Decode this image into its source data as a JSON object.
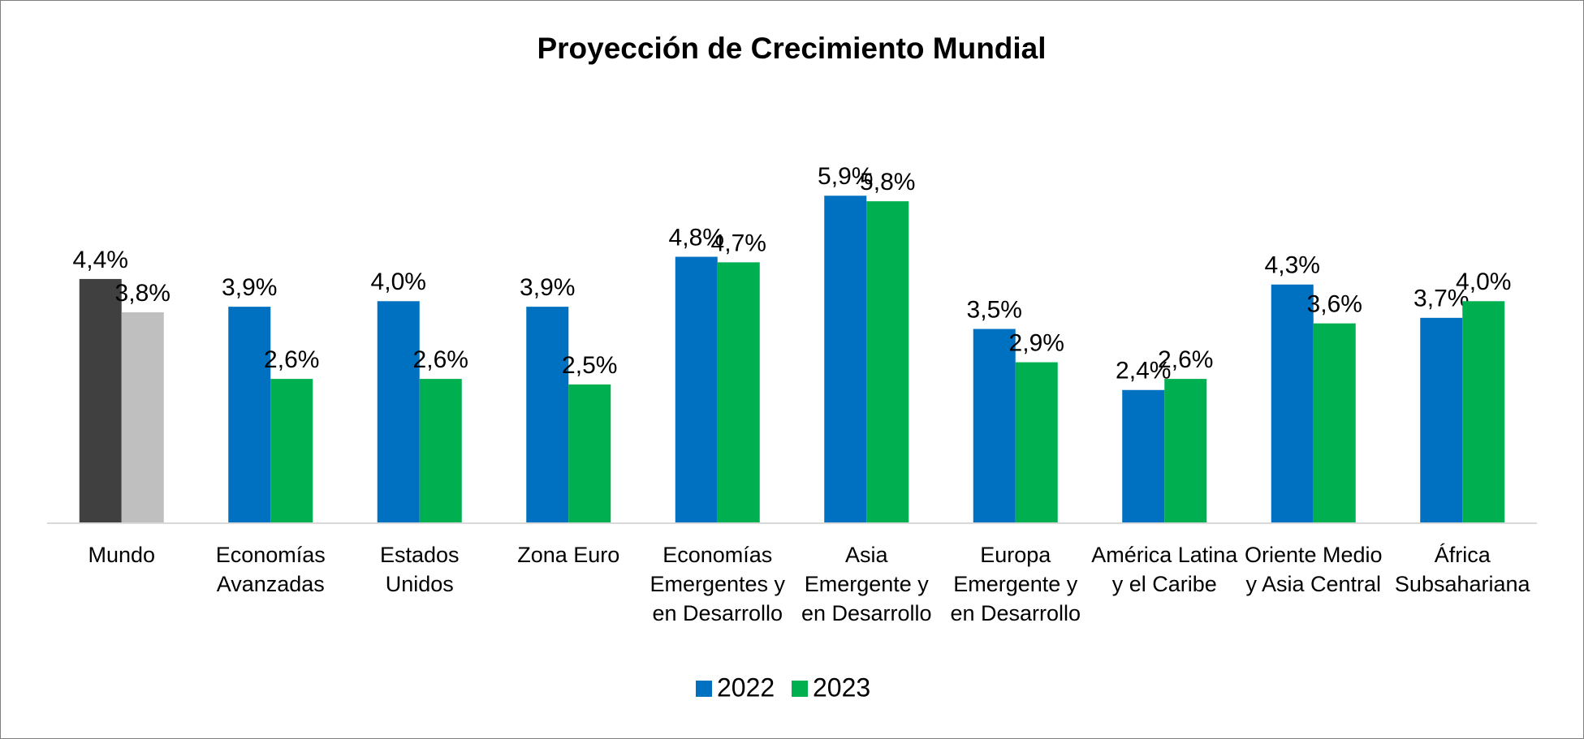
{
  "chart_data": {
    "type": "bar",
    "title": "Proyección de Crecimiento Mundial",
    "categories": [
      "Mundo",
      "Economías\nAvanzadas",
      "Estados\nUnidos",
      "Zona Euro",
      "Economías\nEmergentes y\nen Desarrollo",
      "Asia\nEmergente y\nen Desarrollo",
      "Europa\nEmergente y\nen Desarrollo",
      "América Latina\ny el Caribe",
      "Oriente Medio\ny Asia Central",
      "África\nSubsahariana"
    ],
    "series": [
      {
        "name": "2022",
        "color": "#0070c0",
        "colors": [
          "#404040",
          "#0070c0",
          "#0070c0",
          "#0070c0",
          "#0070c0",
          "#0070c0",
          "#0070c0",
          "#0070c0",
          "#0070c0",
          "#0070c0"
        ],
        "values": [
          4.4,
          3.9,
          4.0,
          3.9,
          4.8,
          5.9,
          3.5,
          2.4,
          4.3,
          3.7
        ],
        "value_labels": [
          "4,4%",
          "3,9%",
          "4,0%",
          "3,9%",
          "4,8%",
          "5,9%",
          "3,5%",
          "2,4%",
          "4,3%",
          "3,7%"
        ]
      },
      {
        "name": "2023",
        "color": "#00b050",
        "colors": [
          "#bfbfbf",
          "#00b050",
          "#00b050",
          "#00b050",
          "#00b050",
          "#00b050",
          "#00b050",
          "#00b050",
          "#00b050",
          "#00b050"
        ],
        "values": [
          3.8,
          2.6,
          2.6,
          2.5,
          4.7,
          5.8,
          2.9,
          2.6,
          3.6,
          4.0
        ],
        "value_labels": [
          "3,8%",
          "2,6%",
          "2,6%",
          "2,5%",
          "4,7%",
          "5,8%",
          "2,9%",
          "2,6%",
          "3,6%",
          "4,0%"
        ]
      }
    ],
    "ylim": [
      0,
      7
    ],
    "legend": "bottom"
  }
}
